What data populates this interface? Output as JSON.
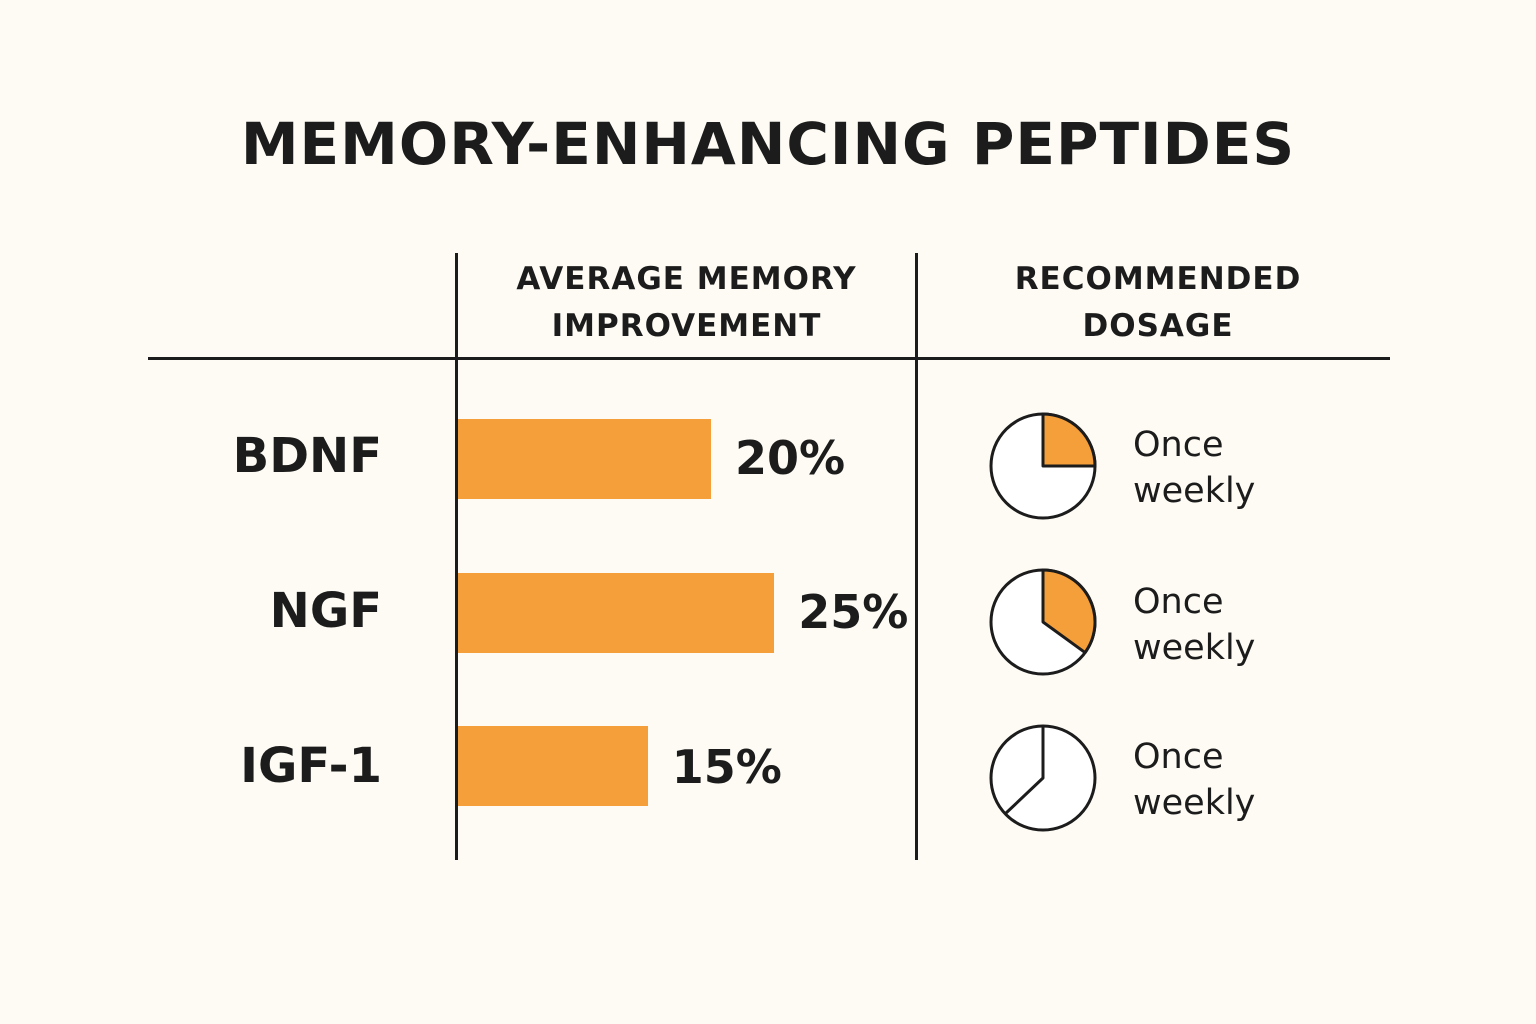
{
  "colors": {
    "background": "#fdfbf4",
    "bar": "#f59f3a",
    "ink": "#1c1c1c",
    "pie_empty": "#ffffff"
  },
  "chart_data": {
    "type": "table",
    "title": "MEMORY-ENHANCING PEPTIDES",
    "columns": [
      {
        "line1": "AVERAGE MEMORY",
        "line2": "IMPROVEMENT"
      },
      {
        "line1": "RECOMMENDED",
        "line2": "DOSAGE"
      }
    ],
    "rows": [
      {
        "peptide": "BDNF",
        "improvement": 20,
        "improvement_label": "20%",
        "pie_fraction": 0.25,
        "dosage_line1": "Once",
        "dosage_line2": "weekly"
      },
      {
        "peptide": "NGF",
        "improvement": 25,
        "improvement_label": "25%",
        "pie_fraction": 0.35,
        "dosage_line1": "Once",
        "dosage_line2": "weekly"
      },
      {
        "peptide": "IGF-1",
        "improvement": 15,
        "improvement_label": "15%",
        "pie_fraction": 0.0,
        "dosage_line1": "Once",
        "dosage_line2": "weekly"
      }
    ]
  }
}
